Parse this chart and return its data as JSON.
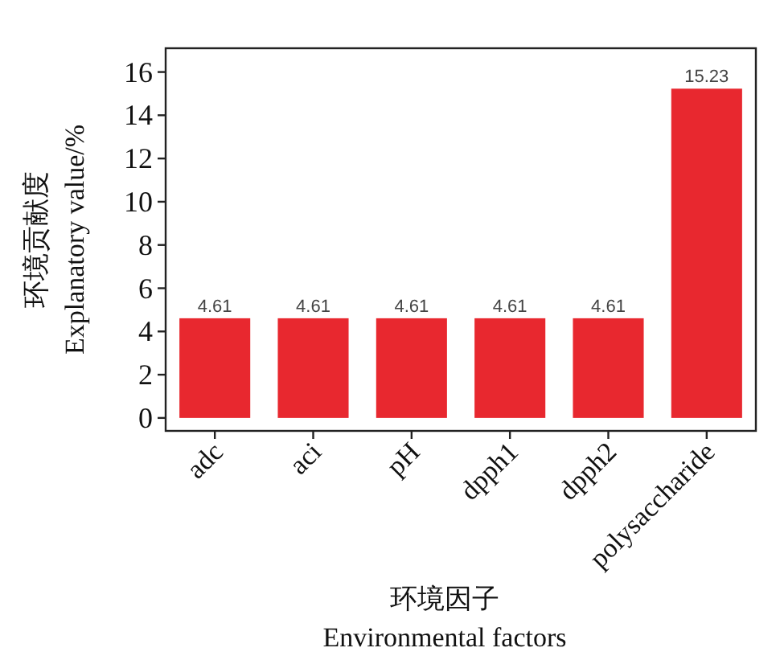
{
  "chart_data": {
    "type": "bar",
    "xlabel": "环境因子\nEnvironmental factors",
    "ylabel": "环境贡献度\nExplanatory value/%",
    "categories": [
      "adc",
      "aci",
      "pH",
      "dpph1",
      "dpph2",
      "polysaccharide"
    ],
    "values": [
      4.61,
      4.61,
      4.61,
      4.61,
      4.61,
      15.23
    ],
    "color": "#e8282f",
    "ylim": [
      -0.6,
      17.1
    ],
    "yticks": [
      0,
      2,
      4,
      6,
      8,
      10,
      12,
      14,
      16
    ],
    "data_labels": true,
    "grid": false
  }
}
